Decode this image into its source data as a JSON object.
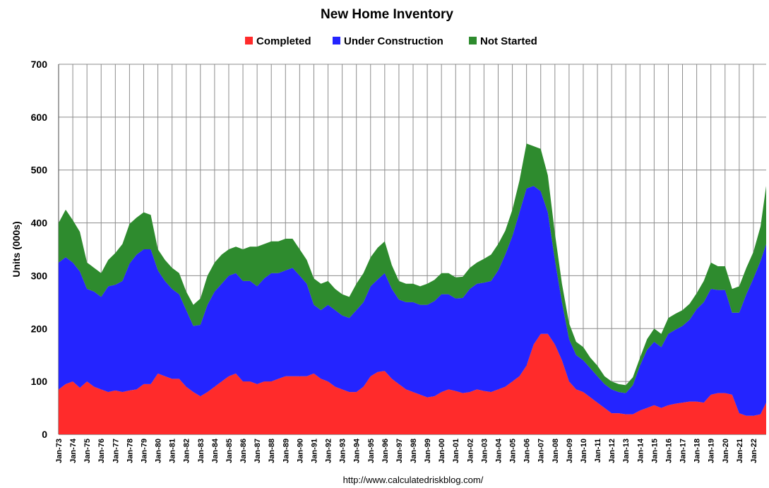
{
  "chart_data": {
    "type": "area",
    "stacked": true,
    "title": "New Home Inventory",
    "ylabel": "Units (000s)",
    "xlabel": "",
    "ylim": [
      0,
      700
    ],
    "yticks": [
      0,
      100,
      200,
      300,
      400,
      500,
      600,
      700
    ],
    "grid": true,
    "legend_position": "top-center",
    "x_start": 1973.0,
    "x_end": 2022.9,
    "x_tick_labels": [
      "Jan-73",
      "Jan-74",
      "Jan-75",
      "Jan-76",
      "Jan-77",
      "Jan-78",
      "Jan-79",
      "Jan-80",
      "Jan-81",
      "Jan-82",
      "Jan-83",
      "Jan-84",
      "Jan-85",
      "Jan-86",
      "Jan-87",
      "Jan-88",
      "Jan-89",
      "Jan-90",
      "Jan-91",
      "Jan-92",
      "Jan-93",
      "Jan-94",
      "Jan-95",
      "Jan-96",
      "Jan-97",
      "Jan-98",
      "Jan-99",
      "Jan-00",
      "Jan-01",
      "Jan-02",
      "Jan-03",
      "Jan-04",
      "Jan-05",
      "Jan-06",
      "Jan-07",
      "Jan-08",
      "Jan-09",
      "Jan-10",
      "Jan-11",
      "Jan-12",
      "Jan-13",
      "Jan-14",
      "Jan-15",
      "Jan-16",
      "Jan-17",
      "Jan-18",
      "Jan-19",
      "Jan-20",
      "Jan-21",
      "Jan-22"
    ],
    "x": [
      1973.0,
      1973.5,
      1974.0,
      1974.5,
      1975.0,
      1975.5,
      1976.0,
      1976.5,
      1977.0,
      1977.5,
      1978.0,
      1978.5,
      1979.0,
      1979.5,
      1980.0,
      1980.5,
      1981.0,
      1981.5,
      1982.0,
      1982.5,
      1983.0,
      1983.5,
      1984.0,
      1984.5,
      1985.0,
      1985.5,
      1986.0,
      1986.5,
      1987.0,
      1987.5,
      1988.0,
      1988.5,
      1989.0,
      1989.5,
      1990.0,
      1990.5,
      1991.0,
      1991.5,
      1992.0,
      1992.5,
      1993.0,
      1993.5,
      1994.0,
      1994.5,
      1995.0,
      1995.5,
      1996.0,
      1996.5,
      1997.0,
      1997.5,
      1998.0,
      1998.5,
      1999.0,
      1999.5,
      2000.0,
      2000.5,
      2001.0,
      2001.5,
      2002.0,
      2002.5,
      2003.0,
      2003.5,
      2004.0,
      2004.5,
      2005.0,
      2005.5,
      2006.0,
      2006.5,
      2007.0,
      2007.5,
      2008.0,
      2008.5,
      2009.0,
      2009.5,
      2010.0,
      2010.5,
      2011.0,
      2011.5,
      2012.0,
      2012.5,
      2013.0,
      2013.5,
      2014.0,
      2014.5,
      2015.0,
      2015.5,
      2016.0,
      2016.5,
      2017.0,
      2017.5,
      2018.0,
      2018.5,
      2019.0,
      2019.5,
      2020.0,
      2020.5,
      2021.0,
      2021.5,
      2022.0,
      2022.5,
      2022.9
    ],
    "series": [
      {
        "name": "Completed",
        "color": "#ff2b2b",
        "values": [
          85,
          95,
          100,
          88,
          100,
          90,
          85,
          80,
          83,
          80,
          83,
          85,
          95,
          95,
          115,
          110,
          105,
          105,
          90,
          80,
          72,
          80,
          90,
          100,
          110,
          115,
          100,
          100,
          95,
          100,
          100,
          105,
          110,
          110,
          110,
          110,
          115,
          105,
          100,
          90,
          85,
          80,
          80,
          90,
          110,
          118,
          120,
          105,
          95,
          85,
          80,
          75,
          70,
          72,
          80,
          85,
          82,
          78,
          80,
          85,
          82,
          80,
          85,
          90,
          100,
          110,
          130,
          170,
          190,
          190,
          170,
          140,
          100,
          85,
          80,
          70,
          60,
          50,
          40,
          40,
          38,
          38,
          45,
          50,
          55,
          50,
          55,
          58,
          60,
          62,
          62,
          60,
          75,
          78,
          78,
          75,
          40,
          35,
          35,
          38,
          60
        ]
      },
      {
        "name": "Under Construction",
        "color": "#2424ff",
        "values": [
          240,
          240,
          225,
          220,
          175,
          180,
          175,
          200,
          200,
          210,
          240,
          255,
          255,
          255,
          195,
          180,
          170,
          160,
          145,
          125,
          135,
          165,
          180,
          185,
          190,
          190,
          190,
          190,
          185,
          195,
          205,
          200,
          200,
          205,
          190,
          175,
          130,
          130,
          145,
          145,
          140,
          140,
          155,
          160,
          170,
          175,
          185,
          170,
          160,
          165,
          170,
          170,
          175,
          180,
          185,
          180,
          175,
          180,
          195,
          200,
          205,
          210,
          225,
          250,
          275,
          310,
          335,
          300,
          270,
          230,
          160,
          110,
          80,
          65,
          60,
          55,
          50,
          45,
          45,
          40,
          40,
          55,
          85,
          110,
          120,
          115,
          135,
          140,
          145,
          155,
          175,
          190,
          200,
          195,
          195,
          155,
          190,
          230,
          260,
          290,
          300
        ]
      },
      {
        "name": "Not Started",
        "color": "#2e8b2e",
        "values": [
          75,
          90,
          80,
          75,
          50,
          45,
          45,
          50,
          60,
          70,
          75,
          70,
          70,
          65,
          40,
          40,
          40,
          40,
          35,
          40,
          50,
          55,
          55,
          55,
          50,
          50,
          60,
          65,
          75,
          65,
          60,
          60,
          60,
          55,
          50,
          45,
          50,
          50,
          45,
          40,
          40,
          40,
          50,
          55,
          55,
          60,
          60,
          45,
          35,
          35,
          35,
          35,
          40,
          40,
          40,
          40,
          40,
          40,
          40,
          40,
          45,
          50,
          50,
          45,
          50,
          60,
          85,
          75,
          80,
          70,
          50,
          35,
          30,
          25,
          25,
          20,
          20,
          15,
          15,
          15,
          15,
          15,
          15,
          20,
          25,
          25,
          30,
          30,
          30,
          30,
          30,
          40,
          50,
          45,
          45,
          45,
          50,
          50,
          50,
          65,
          110
        ]
      }
    ]
  },
  "source_text": "http://www.calculatedriskblog.com/"
}
